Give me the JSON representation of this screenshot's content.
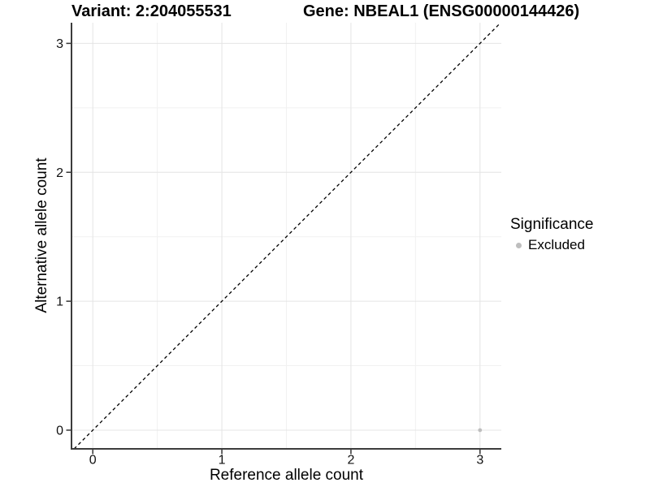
{
  "header": {
    "variant_title": "Variant: 2:204055531",
    "gene_title": "Gene: NBEAL1 (ENSG00000144426)"
  },
  "legend": {
    "title": "Significance",
    "items": [
      {
        "label": "Excluded",
        "color": "#bebebe"
      }
    ]
  },
  "colors": {
    "background": "#ffffff",
    "grid_major": "#e4e4e4",
    "grid_minor": "#f1f1f1",
    "axis_line": "#3c3c3c",
    "tick": "#333333",
    "tick_label": "#111111",
    "text": "#000000",
    "ref_line": "#000000"
  },
  "chart_data": {
    "type": "scatter",
    "title": "Variant: 2:204055531 | Gene: NBEAL1 (ENSG00000144426)",
    "xlabel": "Reference allele count",
    "ylabel": "Alternative allele count",
    "xlim": [
      -0.165,
      3.165
    ],
    "ylim": [
      -0.145,
      3.16
    ],
    "x_ticks": [
      0,
      1,
      2,
      3
    ],
    "y_ticks": [
      0,
      1,
      2,
      3
    ],
    "x_tick_labels": [
      "0",
      "1",
      "2",
      "3"
    ],
    "y_tick_labels": [
      "0",
      "1",
      "2",
      "3"
    ],
    "x_minor_ticks": [
      0.5,
      1.5,
      2.5
    ],
    "y_minor_ticks": [
      0.5,
      1.5,
      2.5
    ],
    "grid": true,
    "legend_position": "right",
    "series": [
      {
        "name": "Excluded",
        "color": "#bebebe",
        "point_radius": 2.4,
        "points": [
          {
            "x": 3,
            "y": 0
          }
        ]
      }
    ],
    "reference_line": {
      "kind": "identity",
      "slope": 1,
      "intercept": 0,
      "style": "dashed",
      "color": "#000000"
    }
  }
}
